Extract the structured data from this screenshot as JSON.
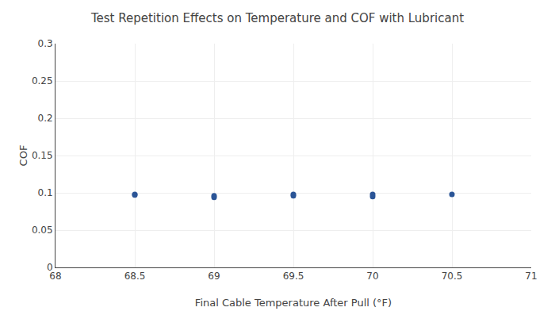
{
  "chart_data": {
    "type": "scatter",
    "title": "Test Repetition Effects on Temperature and COF with Lubricant",
    "xlabel": "Final Cable Temperature After Pull (°F)",
    "ylabel": "COF",
    "x": [
      68.5,
      68.5,
      69.0,
      69.0,
      69.5,
      69.5,
      70.0,
      70.0,
      70.5
    ],
    "values": [
      0.098,
      0.097,
      0.094,
      0.096,
      0.096,
      0.098,
      0.095,
      0.098,
      0.098
    ],
    "color": "#2B5597",
    "xlim": [
      68,
      71
    ],
    "ylim": [
      0,
      0.3
    ],
    "xticks": [
      68,
      68.5,
      69,
      69.5,
      70,
      70.5,
      71
    ],
    "yticks": [
      0,
      0.05,
      0.1,
      0.15,
      0.2,
      0.25,
      0.3
    ],
    "grid": true
  }
}
